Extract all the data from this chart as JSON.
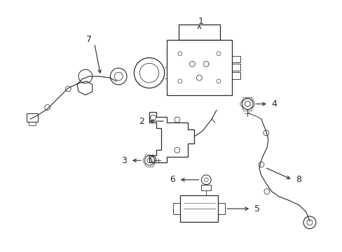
{
  "background_color": "#ffffff",
  "line_color": "#2a2a2a",
  "label_color": "#000000",
  "figsize": [
    4.89,
    3.6
  ],
  "dpi": 100,
  "label_fontsize": 9,
  "lw": 0.9
}
